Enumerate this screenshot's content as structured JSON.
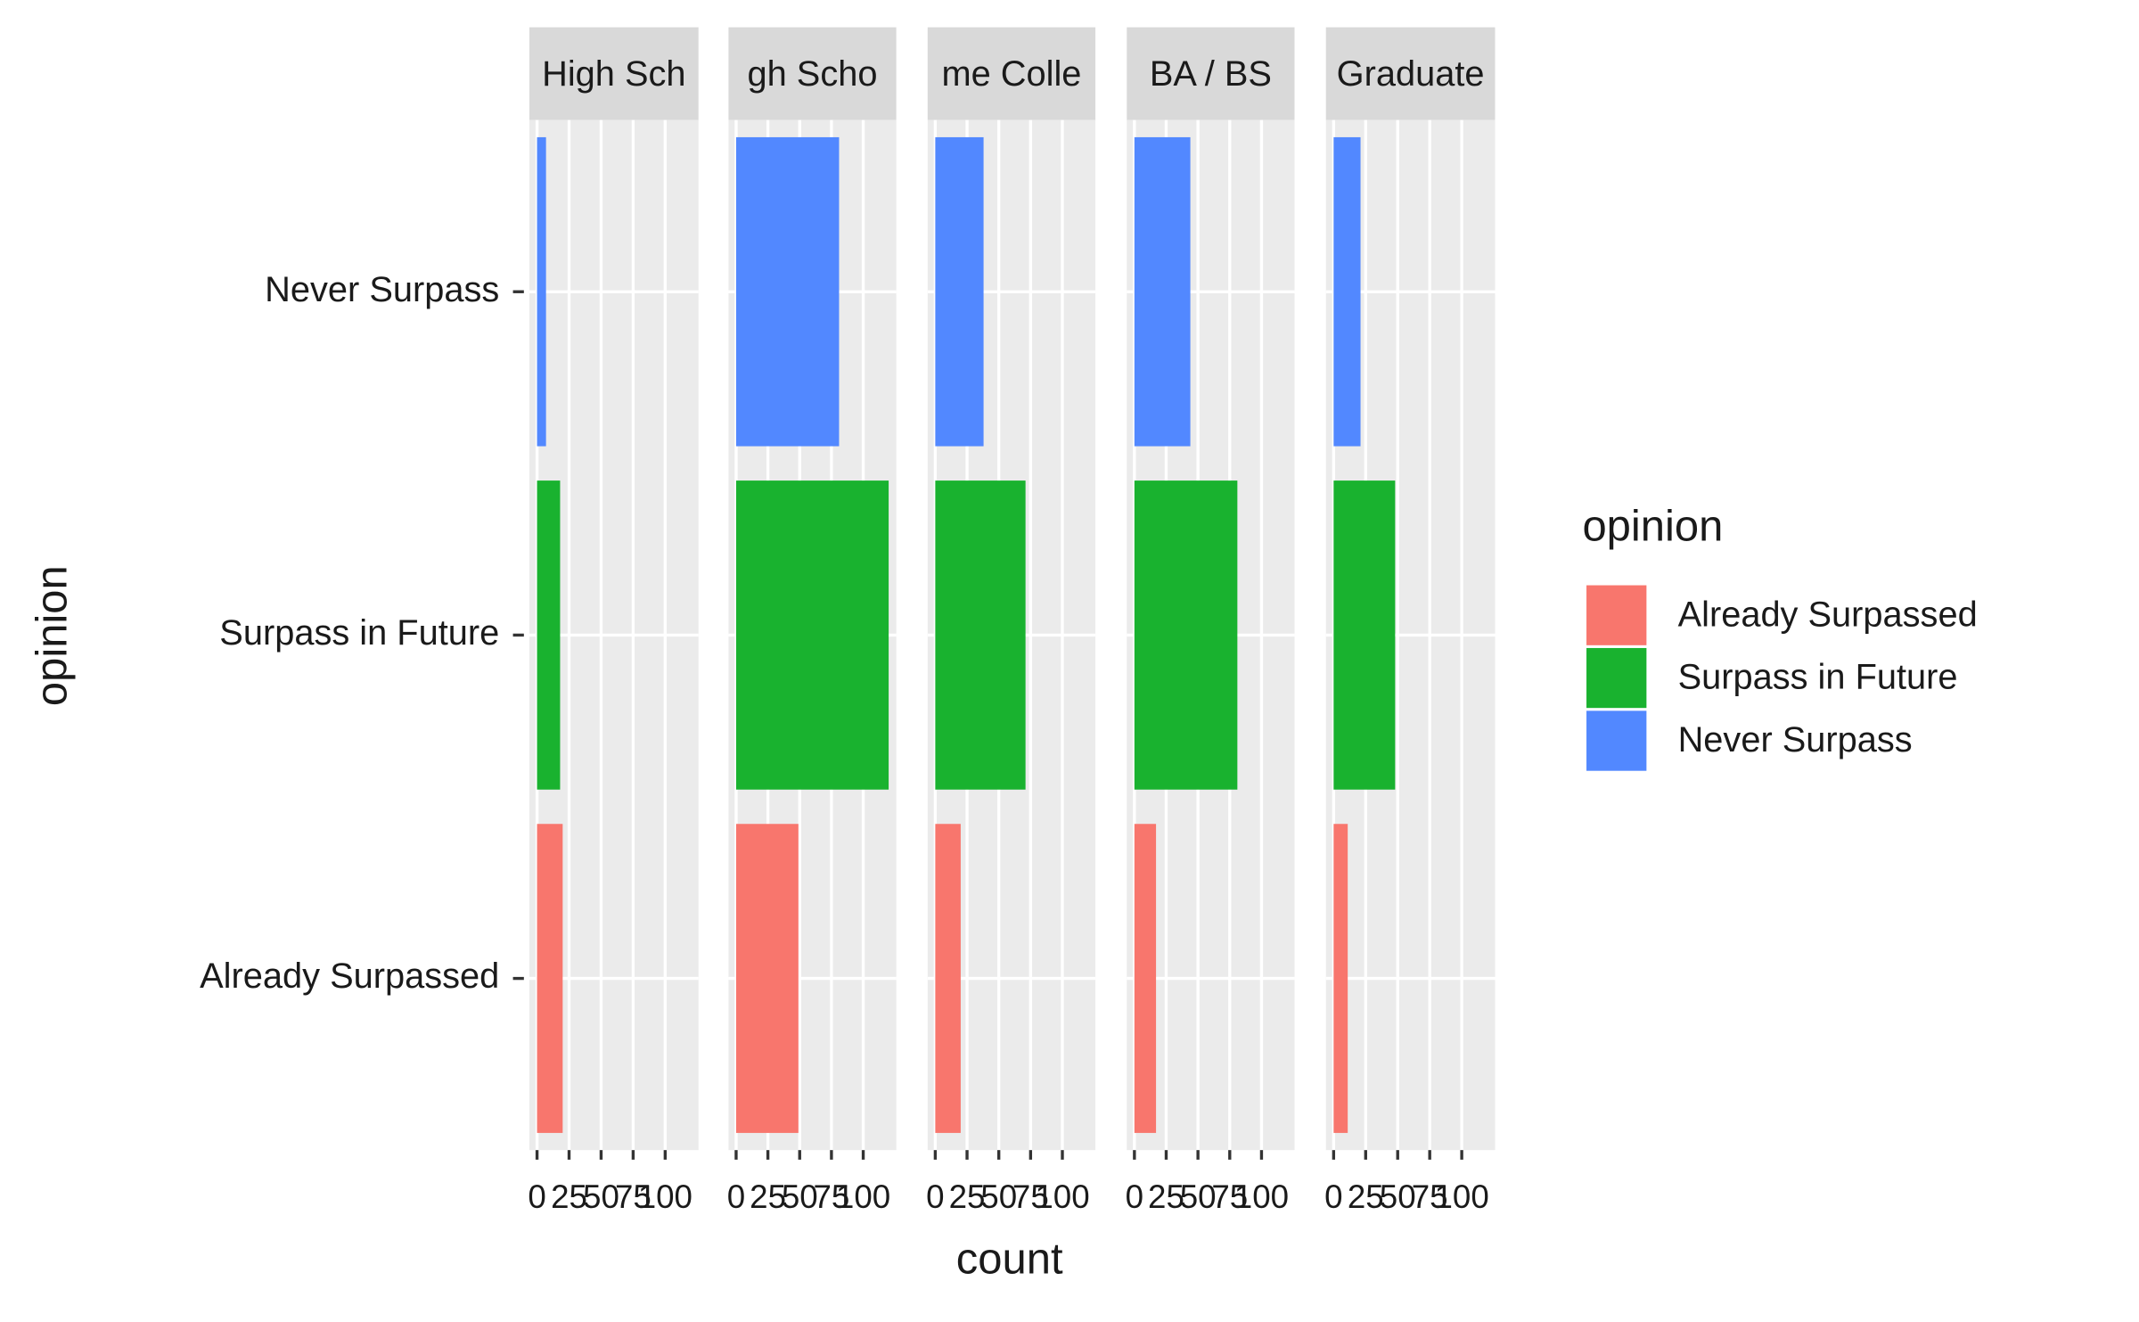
{
  "chart_data": {
    "type": "bar",
    "orientation": "horizontal",
    "x_label": "count",
    "y_label": "opinion",
    "legend_title": "opinion",
    "categories": [
      "Already Surpassed",
      "Surpass in Future",
      "Never Surpass"
    ],
    "colors": [
      "#f8766d",
      "#19b22f",
      "#5288ff"
    ],
    "xlim": [
      -6,
      126
    ],
    "xticks": [
      0,
      25,
      50,
      75,
      100
    ],
    "facets": [
      {
        "title": "High Sch",
        "values": [
          20,
          18,
          7
        ]
      },
      {
        "title": "gh Scho",
        "values": [
          49,
          120,
          81
        ]
      },
      {
        "title": "me Colle",
        "values": [
          20,
          71,
          38
        ]
      },
      {
        "title": "BA / BS",
        "values": [
          17,
          81,
          44
        ]
      },
      {
        "title": "Graduate",
        "values": [
          11,
          48,
          21
        ]
      }
    ]
  }
}
